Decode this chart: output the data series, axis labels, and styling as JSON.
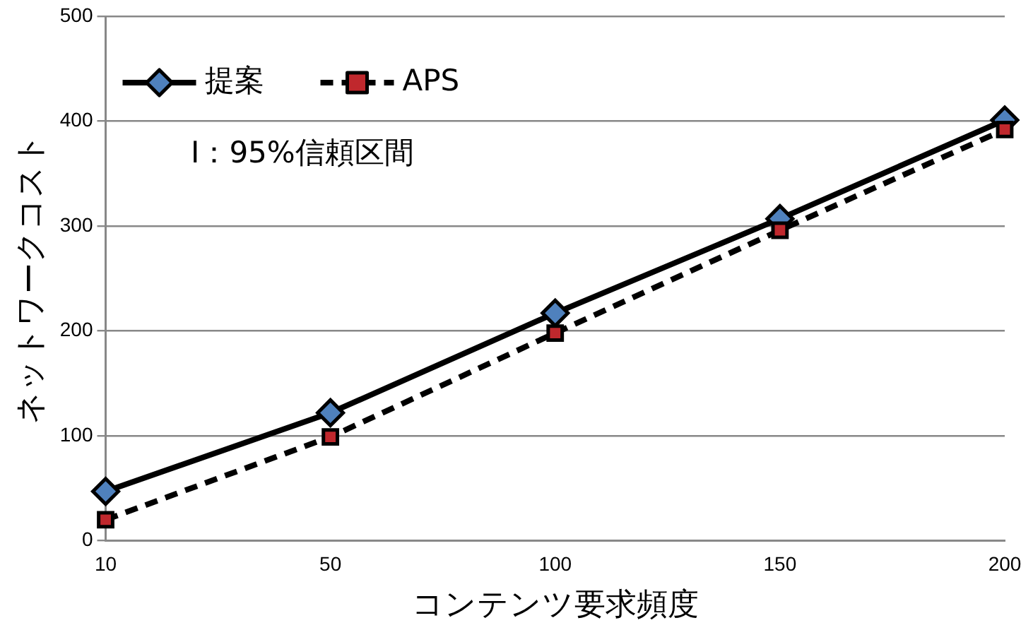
{
  "chart_data": {
    "type": "line",
    "xlabel": "コンテンツ要求頻度",
    "ylabel": "ネットワークコスト",
    "categories": [
      "10",
      "50",
      "100",
      "150",
      "200"
    ],
    "series": [
      {
        "name": "提案",
        "color": "#4f81bd",
        "marker": "diamond",
        "line_style": "solid",
        "values": [
          47,
          122,
          217,
          307,
          401
        ]
      },
      {
        "name": "APS",
        "color": "#c0282d",
        "marker": "square",
        "line_style": "dashed",
        "values": [
          20,
          99,
          198,
          296,
          392
        ]
      }
    ],
    "ylim": [
      0,
      500
    ],
    "yticks": [
      0,
      100,
      200,
      300,
      400,
      500
    ],
    "grid": "y",
    "legend": "top left",
    "annotations": [
      "I：95%信頼区間"
    ]
  }
}
